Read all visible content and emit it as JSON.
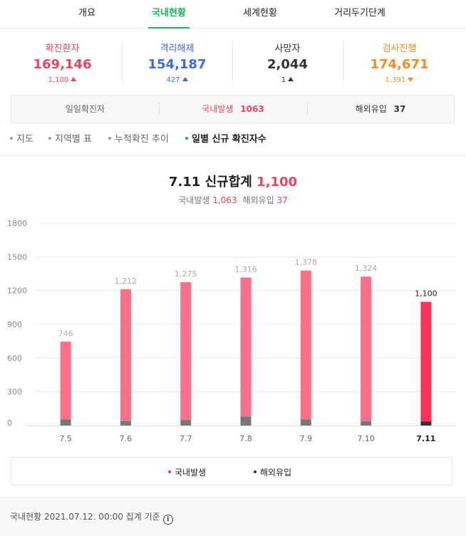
{
  "tabs": [
    {
      "label": "개요"
    },
    {
      "label": "국내현황"
    },
    {
      "label": "세계현황"
    },
    {
      "label": "거리두기단계"
    }
  ],
  "colors": {
    "accent": "#1ab35a",
    "confirmed": "#f0425c",
    "released": "#3c6be8",
    "testing": "#ff8a1f",
    "domestic": "#ff7088",
    "overseas": "#777777",
    "today": "#ff3355"
  },
  "stats": [
    {
      "label": "확진환자",
      "value": "169,146",
      "change": "1,100",
      "dir": "up"
    },
    {
      "label": "격리해제",
      "value": "154,187",
      "change": "427",
      "dir": "up"
    },
    {
      "label": "사망자",
      "value": "2,044",
      "change": "1",
      "dir": "up"
    },
    {
      "label": "검사진행",
      "value": "174,671",
      "change": "1,391",
      "dir": "down"
    }
  ],
  "daily": {
    "label": "일일확진자",
    "domestic_label": "국내발생",
    "domestic_value": "1063",
    "overseas_label": "해외유입",
    "overseas_value": "37"
  },
  "subnav": [
    "지도",
    "지역별 표",
    "누적확진 추이",
    "일별 신규 확진자수"
  ],
  "chart_header": {
    "title_prefix": "7.11 신규합계",
    "title_value": "1,100",
    "domestic_label": "국내발생",
    "domestic_value": "1,063",
    "overseas_label": "해외유입",
    "overseas_value": "37"
  },
  "chart_data": {
    "type": "bar",
    "stacked": true,
    "categories": [
      "7.5",
      "7.6",
      "7.7",
      "7.8",
      "7.9",
      "7.10",
      "7.11"
    ],
    "totals": [
      "746",
      "1,212",
      "1,275",
      "1,316",
      "1,378",
      "1,324",
      "1,100"
    ],
    "series": [
      {
        "name": "해외유입",
        "values": [
          55,
          40,
          50,
          80,
          55,
          40,
          37
        ]
      },
      {
        "name": "국내발생",
        "values": [
          691,
          1172,
          1225,
          1236,
          1323,
          1284,
          1063
        ]
      }
    ],
    "yticks": [
      "1800",
      "1500",
      "1200",
      "900",
      "600",
      "300",
      "0"
    ],
    "ylim": [
      0,
      1800
    ],
    "grid": true,
    "legend": "bottom"
  },
  "legend": [
    {
      "label": "국내발생"
    },
    {
      "label": "해외유입"
    }
  ],
  "footer": {
    "text": "국내현황 2021.07.12. 00:00 집계 기준",
    "icon": "info-icon"
  }
}
